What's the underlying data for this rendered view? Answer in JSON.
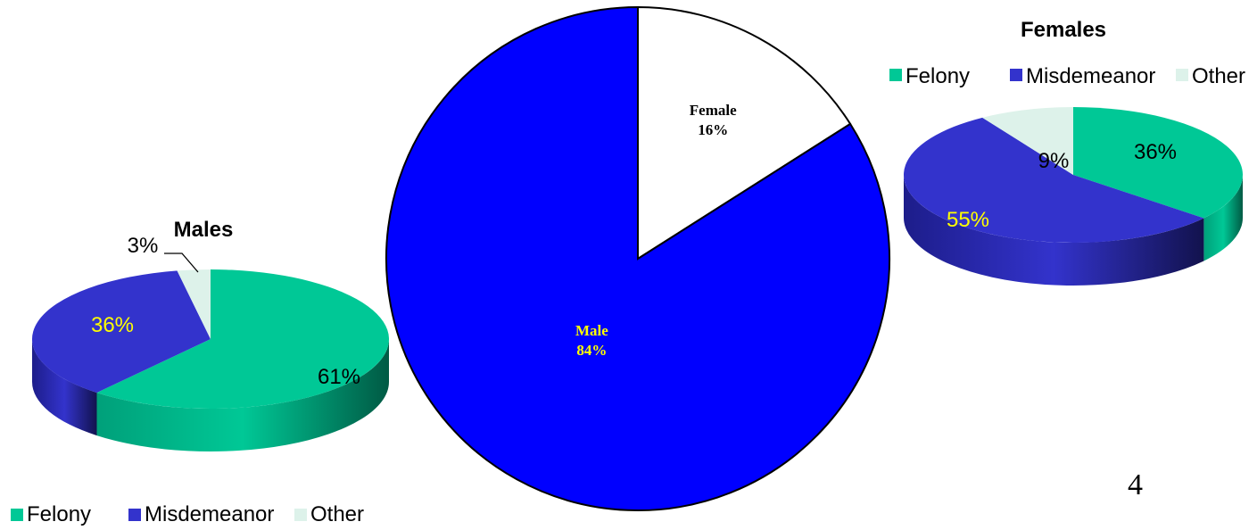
{
  "page": {
    "number": "4"
  },
  "colors": {
    "felony": "#00C896",
    "felony_dark": "#007a5c",
    "misdemeanor": "#3333CC",
    "misdemeanor_dark": "#1a1a7a",
    "other": "#DDF2EA",
    "other_dark": "#9fbfb3",
    "male_pie": "#0000FF",
    "female_pie": "#FFFFFF",
    "outline": "#000000",
    "label_yellow": "#FFFF00"
  },
  "chart_data": [
    {
      "type": "pie",
      "role": "center",
      "title": "",
      "slices": [
        {
          "name": "Female",
          "value": 16,
          "label": "16%"
        },
        {
          "name": "Male",
          "value": 84,
          "label": "84%"
        }
      ]
    },
    {
      "type": "pie",
      "role": "left",
      "title": "Males",
      "legend": [
        "Felony",
        "Misdemeanor",
        "Other"
      ],
      "legend_position": "bottom",
      "slices": [
        {
          "name": "Felony",
          "value": 61,
          "label": "61%"
        },
        {
          "name": "Misdemeanor",
          "value": 36,
          "label": "36%"
        },
        {
          "name": "Other",
          "value": 3,
          "label": "3%"
        }
      ]
    },
    {
      "type": "pie",
      "role": "right",
      "title": "Females",
      "legend": [
        "Felony",
        "Misdemeanor",
        "Other"
      ],
      "legend_position": "top",
      "slices": [
        {
          "name": "Felony",
          "value": 36,
          "label": "36%"
        },
        {
          "name": "Misdemeanor",
          "value": 55,
          "label": "55%"
        },
        {
          "name": "Other",
          "value": 9,
          "label": "9%"
        }
      ]
    }
  ]
}
